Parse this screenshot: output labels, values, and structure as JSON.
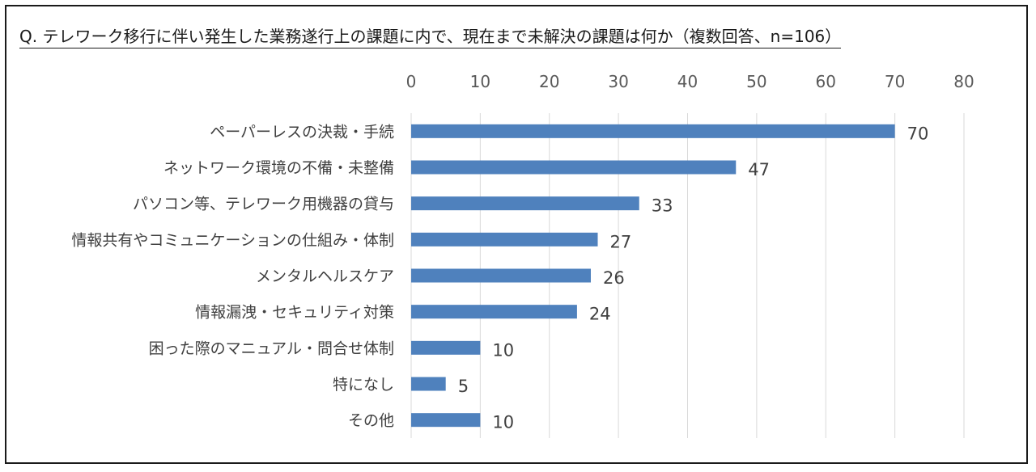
{
  "chart_data": {
    "type": "bar",
    "orientation": "horizontal",
    "title": "Q. テレワーク移行に伴い発生した業務遂行上の課題に内で、現在まで未解決の課題は何か（複数回答、n=106）",
    "categories": [
      "ペーパーレスの決裁・手続",
      "ネットワーク環境の不備・未整備",
      "パソコン等、テレワーク用機器の貸与",
      "情報共有やコミュニケーションの仕組み・体制",
      "メンタルヘルスケア",
      "情報漏洩・セキュリティ対策",
      "困った際のマニュアル・問合せ体制",
      "特になし",
      "その他"
    ],
    "values": [
      70,
      47,
      33,
      27,
      26,
      24,
      10,
      5,
      10
    ],
    "xlim": [
      0,
      80
    ],
    "xticks": [
      0,
      10,
      20,
      30,
      40,
      50,
      60,
      70,
      80
    ],
    "x_axis_position": "top",
    "grid": true,
    "legend": "none",
    "bar_color": "#4f81bd",
    "gridline_color": "#d9d9d9"
  }
}
